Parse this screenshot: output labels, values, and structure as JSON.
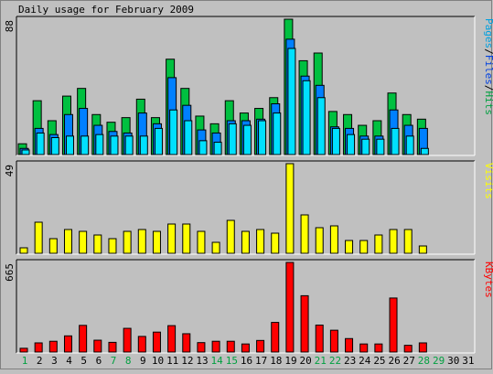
{
  "chart_data": {
    "type": "bar",
    "title": "Daily usage for February 2009",
    "x": [
      "1",
      "2",
      "3",
      "4",
      "5",
      "6",
      "7",
      "8",
      "9",
      "10",
      "11",
      "12",
      "13",
      "14",
      "15",
      "16",
      "17",
      "18",
      "19",
      "20",
      "21",
      "22",
      "23",
      "24",
      "25",
      "26",
      "27",
      "28",
      "29",
      "30",
      "31"
    ],
    "weekend_days": [
      "1",
      "7",
      "8",
      "14",
      "15",
      "21",
      "22",
      "28",
      "29"
    ],
    "panels": [
      {
        "name": "hits-files-pages",
        "ymax_label": "88",
        "ymax": 88,
        "legend": [
          {
            "text": "Pages",
            "color": "#00A0E0"
          },
          {
            "text": "/",
            "color": "#000000"
          },
          {
            "text": "Files",
            "color": "#0040E0"
          },
          {
            "text": "/",
            "color": "#000000"
          },
          {
            "text": "Hits",
            "color": "#00A040"
          }
        ],
        "series": [
          {
            "name": "Hits",
            "color": "#00C040",
            "values": [
              7,
              35,
              22,
              38,
              43,
              26,
              21,
              24,
              36,
              24,
              62,
              43,
              25,
              20,
              35,
              27,
              30,
              37,
              88,
              61,
              66,
              28,
              26,
              19,
              22,
              40,
              26,
              23,
              0,
              0,
              0
            ]
          },
          {
            "name": "Files",
            "color": "#0080FF",
            "values": [
              4,
              17,
              13,
              26,
              30,
              19,
              15,
              14,
              27,
              20,
              50,
              32,
              16,
              14,
              22,
              22,
              23,
              33,
              75,
              51,
              45,
              18,
              17,
              12,
              12,
              29,
              19,
              17,
              0,
              0,
              0
            ]
          },
          {
            "name": "Pages",
            "color": "#00E0FF",
            "values": [
              3,
              14,
              11,
              12,
              12,
              13,
              12,
              12,
              12,
              17,
              29,
              22,
              9,
              8,
              20,
              19,
              22,
              27,
              69,
              48,
              37,
              17,
              13,
              10,
              10,
              17,
              12,
              4,
              0,
              0,
              0
            ]
          }
        ]
      },
      {
        "name": "visits",
        "ymax_label": "49",
        "ymax": 49,
        "legend": [
          {
            "text": "Visits",
            "color": "#FFFF00"
          }
        ],
        "series": [
          {
            "name": "Visits",
            "color": "#FFFF00",
            "values": [
              3,
              17,
              8,
              13,
              12,
              10,
              8,
              12,
              13,
              12,
              16,
              16,
              12,
              6,
              18,
              12,
              13,
              11,
              49,
              21,
              14,
              15,
              7,
              7,
              10,
              13,
              13,
              4,
              0,
              0,
              0
            ]
          }
        ]
      },
      {
        "name": "kbytes",
        "ymax_label": "665",
        "ymax": 665,
        "legend": [
          {
            "text": "KBytes",
            "color": "#FF0000"
          }
        ],
        "series": [
          {
            "name": "KBytes",
            "color": "#FF0000",
            "values": [
              28,
              68,
              80,
              120,
              198,
              88,
              72,
              176,
              116,
              148,
              196,
              136,
              70,
              80,
              80,
              60,
              86,
              220,
              665,
              418,
              200,
              162,
              100,
              60,
              60,
              401,
              50,
              68,
              0,
              0,
              0
            ]
          }
        ]
      }
    ]
  }
}
